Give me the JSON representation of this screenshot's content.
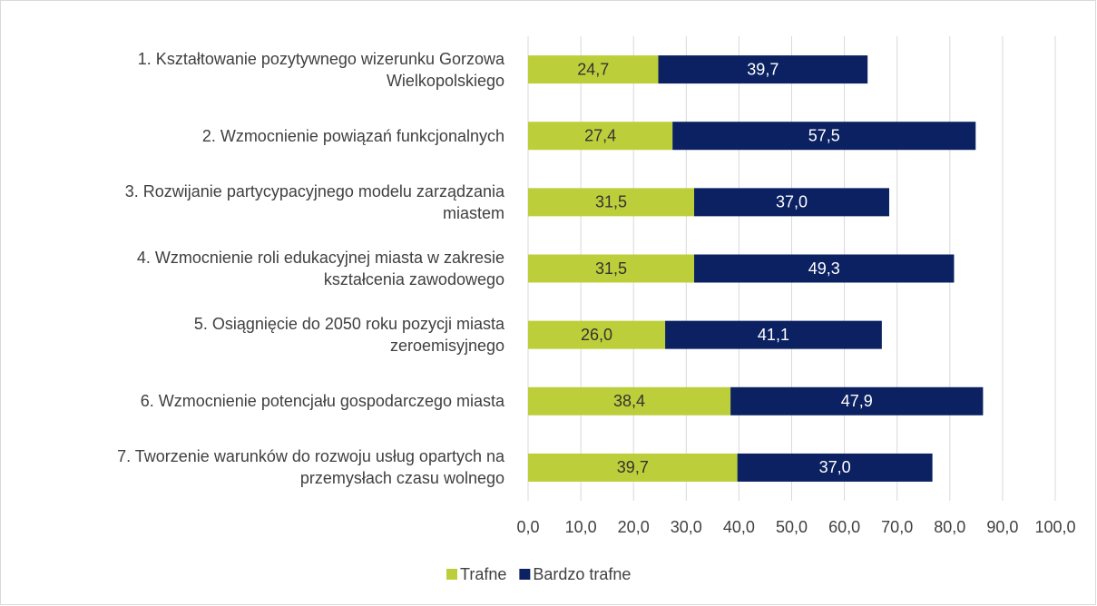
{
  "chart_data": {
    "type": "bar",
    "orientation": "horizontal",
    "stacked": true,
    "categories": [
      "1. Kształtowanie pozytywnego wizerunku Gorzowa\nWielkopolskiego",
      "2. Wzmocnienie powiązań funkcjonalnych",
      "3. Rozwijanie partycypacyjnego modelu zarządzania\nmiastem",
      "4. Wzmocnienie roli edukacyjnej miasta w zakresie\nkształcenia zawodowego",
      "5. Osiągnięcie do 2050 roku pozycji miasta\nzeroemisyjnego",
      "6. Wzmocnienie potencjału gospodarczego miasta",
      "7. Tworzenie warunków do rozwoju usług opartych na\nprzemysłach czasu wolnego"
    ],
    "series": [
      {
        "name": "Trafne",
        "color": "#bccf3a",
        "label_color": "#333333",
        "values": [
          24.7,
          27.4,
          31.5,
          31.5,
          26.0,
          38.4,
          39.7
        ],
        "value_labels": [
          "24,7",
          "27,4",
          "31,5",
          "31,5",
          "26,0",
          "38,4",
          "39,7"
        ]
      },
      {
        "name": "Bardzo trafne",
        "color": "#0b2161",
        "label_color": "#ffffff",
        "values": [
          39.7,
          57.5,
          37.0,
          49.3,
          41.1,
          47.9,
          37.0
        ],
        "value_labels": [
          "39,7",
          "57,5",
          "37,0",
          "49,3",
          "41,1",
          "47,9",
          "37,0"
        ]
      }
    ],
    "xlim": [
      0,
      100
    ],
    "xticks": [
      {
        "value": 0,
        "label": "0,0"
      },
      {
        "value": 10,
        "label": "10,0"
      },
      {
        "value": 20,
        "label": "20,0"
      },
      {
        "value": 30,
        "label": "30,0"
      },
      {
        "value": 40,
        "label": "40,0"
      },
      {
        "value": 50,
        "label": "50,0"
      },
      {
        "value": 60,
        "label": "60,0"
      },
      {
        "value": 70,
        "label": "70,0"
      },
      {
        "value": 80,
        "label": "80,0"
      },
      {
        "value": 90,
        "label": "90,0"
      },
      {
        "value": 100,
        "label": "100,0"
      }
    ],
    "grid": true,
    "legend": "bottom"
  }
}
